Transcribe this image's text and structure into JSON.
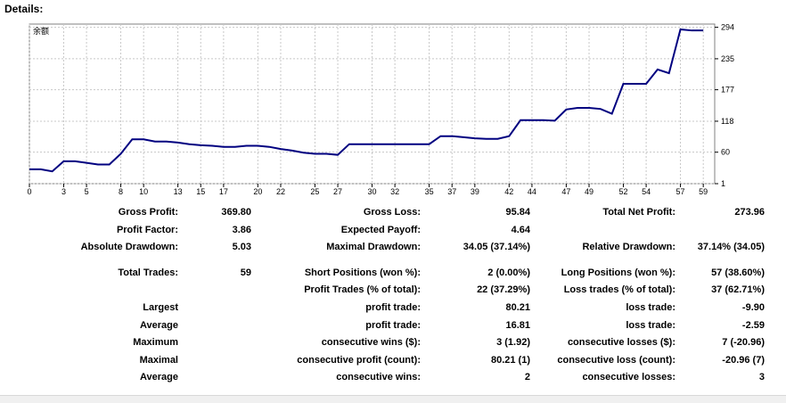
{
  "header": {
    "title": "Details:"
  },
  "chart_data": {
    "type": "line",
    "legend_text": "余额",
    "line_color": "#000080",
    "grid": true,
    "xlim": [
      0,
      60
    ],
    "ylim": [
      1,
      300
    ],
    "x_ticks": [
      "0",
      "3",
      "5",
      "8",
      "10",
      "13",
      "15",
      "17",
      "20",
      "22",
      "25",
      "27",
      "30",
      "32",
      "35",
      "37",
      "39",
      "42",
      "44",
      "47",
      "49",
      "52",
      "54",
      "57",
      "59"
    ],
    "y_ticks": [
      "294",
      "235",
      "177",
      "118",
      "60",
      "1"
    ],
    "series": [
      {
        "x": [
          0,
          1,
          2,
          3,
          4,
          5,
          6,
          7,
          8,
          9,
          10,
          11,
          12,
          13,
          14,
          15,
          16,
          17,
          18,
          19,
          20,
          21,
          22,
          23,
          24,
          25,
          26,
          27,
          28,
          29,
          30,
          31,
          32,
          33,
          34,
          35,
          36,
          37,
          38,
          39,
          40,
          41,
          42,
          43,
          44,
          45,
          46,
          47,
          48,
          49,
          50,
          51,
          52,
          53,
          54,
          55,
          56,
          57,
          58,
          59
        ],
        "y": [
          28,
          28,
          24,
          43,
          43,
          40,
          37,
          37,
          57,
          84,
          84,
          80,
          80,
          78,
          75,
          73,
          72,
          70,
          70,
          72,
          72,
          70,
          66,
          63,
          59,
          57,
          57,
          55,
          75,
          75,
          75,
          75,
          75,
          75,
          75,
          75,
          90,
          90,
          88,
          86,
          85,
          85,
          90,
          120,
          120,
          120,
          119,
          140,
          143,
          143,
          141,
          132,
          188,
          188,
          188,
          215,
          208,
          290,
          288,
          288
        ]
      }
    ]
  },
  "stats": {
    "row1": {
      "l1": "Gross Profit:",
      "v1": "369.80",
      "l2": "Gross Loss:",
      "v2": "95.84",
      "l3": "Total Net Profit:",
      "v3": "273.96"
    },
    "row2": {
      "l1": "Profit Factor:",
      "v1": "3.86",
      "l2": "Expected Payoff:",
      "v2": "4.64"
    },
    "row3": {
      "l1": "Absolute Drawdown:",
      "v1": "5.03",
      "l2": "Maximal Drawdown:",
      "v2": "34.05 (37.14%)",
      "l3": "Relative Drawdown:",
      "v3": "37.14% (34.05)"
    },
    "row4": {
      "l1": "Total Trades:",
      "v1": "59",
      "l2": "Short Positions (won %):",
      "v2": "2 (0.00%)",
      "l3": "Long Positions (won %):",
      "v3": "57 (38.60%)"
    },
    "row5": {
      "l2": "Profit Trades (% of total):",
      "v2": "22 (37.29%)",
      "l3": "Loss trades (% of total):",
      "v3": "37 (62.71%)"
    },
    "row6": {
      "l1": "Largest",
      "l2": "profit trade:",
      "v2": "80.21",
      "l3": "loss trade:",
      "v3": "-9.90"
    },
    "row7": {
      "l1": "Average",
      "l2": "profit trade:",
      "v2": "16.81",
      "l3": "loss trade:",
      "v3": "-2.59"
    },
    "row8": {
      "l1": "Maximum",
      "l2": "consecutive wins ($):",
      "v2": "3 (1.92)",
      "l3": "consecutive losses ($):",
      "v3": "7 (-20.96)"
    },
    "row9": {
      "l1": "Maximal",
      "l2": "consecutive profit (count):",
      "v2": "80.21 (1)",
      "l3": "consecutive loss (count):",
      "v3": "-20.96 (7)"
    },
    "row10": {
      "l1": "Average",
      "l2": "consecutive wins:",
      "v2": "2",
      "l3": "consecutive losses:",
      "v3": "3"
    }
  }
}
